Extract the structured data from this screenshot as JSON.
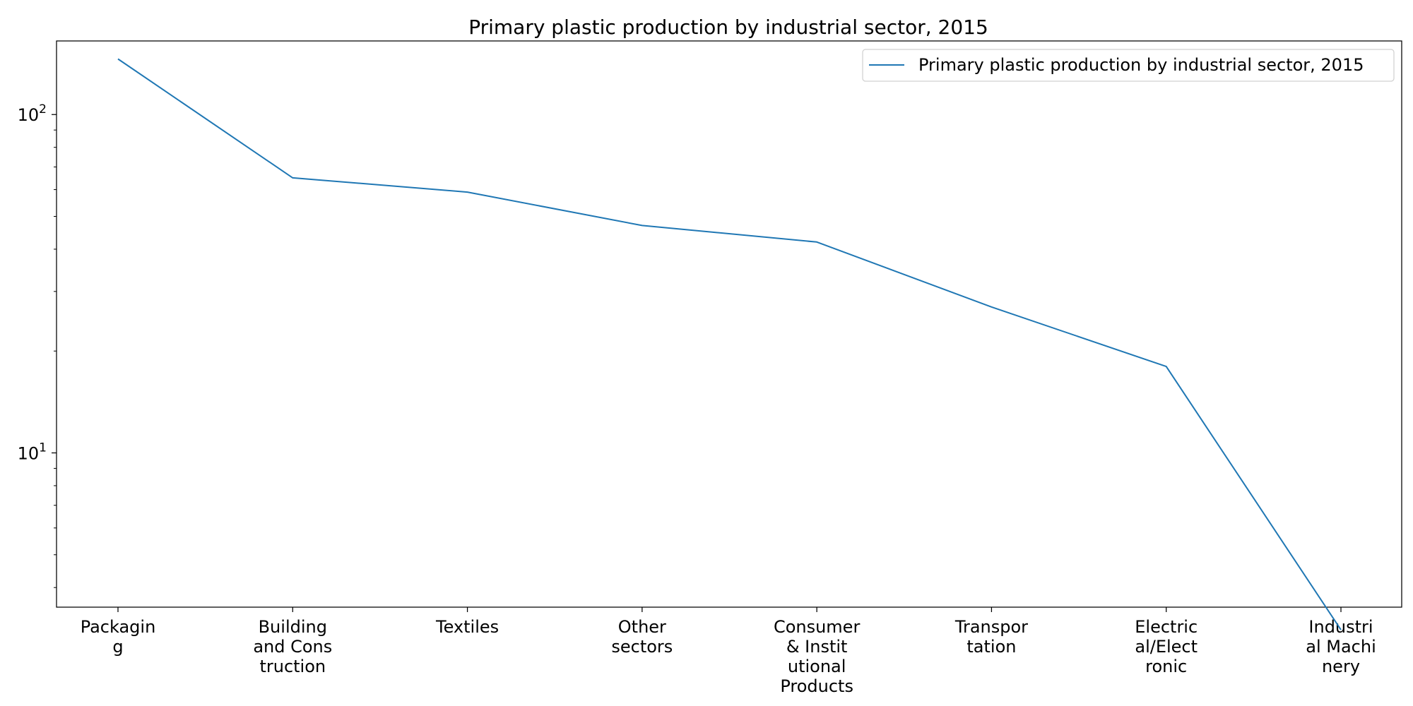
{
  "chart_data": {
    "type": "line",
    "title": "Primary plastic production by industrial sector, 2015",
    "xlabel": "",
    "ylabel": "",
    "y_scale": "log",
    "ylim": [
      3.5,
      165
    ],
    "grid": false,
    "legend_position": "top-right",
    "categories": [
      "Packaging",
      "Building and Construction",
      "Textiles",
      "Other sectors",
      "Consumer & Institutional Products",
      "Transportation",
      "Electrical/Electronic",
      "Industrial Machinery"
    ],
    "category_tick_lines": [
      [
        "Packagin",
        "g"
      ],
      [
        "Building",
        "and Cons",
        "truction"
      ],
      [
        "Textiles"
      ],
      [
        "Other",
        "sectors"
      ],
      [
        "Consumer",
        "& Instit",
        "utional",
        "Products"
      ],
      [
        "Transpor",
        "tation"
      ],
      [
        "Electric",
        "al/Elect",
        "ronic"
      ],
      [
        "Industri",
        "al Machi",
        "nery"
      ]
    ],
    "y_tick_labels": [
      {
        "value": 10,
        "base": "10",
        "exponent": "1"
      },
      {
        "value": 100,
        "base": "10",
        "exponent": "2"
      }
    ],
    "series": [
      {
        "name": "Primary plastic production by industrial sector, 2015",
        "color": "#1f77b4",
        "values": [
          146,
          65,
          59,
          47,
          42,
          27,
          18,
          3
        ]
      }
    ]
  }
}
